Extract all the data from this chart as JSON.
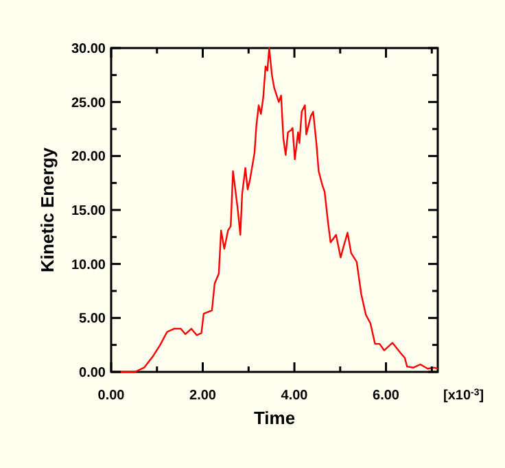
{
  "chart_data": {
    "type": "line",
    "xlabel": "Time",
    "ylabel": "Kinetic Energy",
    "annotations": [
      "[x10$^{-3}$]"
    ],
    "xlim": [
      0,
      7.13
    ],
    "ylim": [
      0,
      30
    ],
    "xticks": [
      {
        "value": 0,
        "label": "0.00"
      },
      {
        "value": 1,
        "label": null
      },
      {
        "value": 2,
        "label": "2.00"
      },
      {
        "value": 3,
        "label": null
      },
      {
        "value": 4,
        "label": "4.00"
      },
      {
        "value": 5,
        "label": null
      },
      {
        "value": 6,
        "label": "6.00"
      },
      {
        "value": 7,
        "label": null
      }
    ],
    "yticks": [
      {
        "value": 0,
        "label": "0.00"
      },
      {
        "value": 2.5,
        "label": null
      },
      {
        "value": 5,
        "label": "5.00"
      },
      {
        "value": 7.5,
        "label": null
      },
      {
        "value": 10,
        "label": "10.00"
      },
      {
        "value": 12.5,
        "label": null
      },
      {
        "value": 15,
        "label": "15.00"
      },
      {
        "value": 17.5,
        "label": null
      },
      {
        "value": 20,
        "label": "20.00"
      },
      {
        "value": 22.5,
        "label": null
      },
      {
        "value": 25,
        "label": "25.00"
      },
      {
        "value": 27.5,
        "label": null
      },
      {
        "value": 30,
        "label": "30.00"
      }
    ],
    "grid": false,
    "marker": "none",
    "line_style": "solid",
    "series": [
      {
        "color": "#ff0000",
        "x": [
          0,
          0.52,
          0.72,
          0.92,
          1.07,
          1.22,
          1.37,
          1.52,
          1.62,
          1.75,
          1.87,
          1.97,
          2.02,
          2.2,
          2.26,
          2.35,
          2.4,
          2.47,
          2.55,
          2.61,
          2.66,
          2.76,
          2.82,
          2.86,
          2.93,
          2.98,
          3.03,
          3.13,
          3.17,
          3.22,
          3.27,
          3.32,
          3.37,
          3.41,
          3.45,
          3.51,
          3.56,
          3.66,
          3.71,
          3.76,
          3.81,
          3.86,
          3.93,
          3.96,
          4.01,
          4.08,
          4.11,
          4.16,
          4.23,
          4.26,
          4.36,
          4.41,
          4.48,
          4.53,
          4.61,
          4.66,
          4.73,
          4.79,
          4.91,
          5.01,
          5.06,
          5.16,
          5.24,
          5.36,
          5.46,
          5.56,
          5.66,
          5.76,
          5.86,
          5.96,
          6.14,
          6.31,
          6.41,
          6.46,
          6.6,
          6.75,
          6.91,
          7.05,
          7.13
        ],
        "values": [
          0,
          0,
          0.4,
          1.5,
          2.5,
          3.7,
          4.0,
          4.0,
          3.5,
          4.0,
          3.4,
          3.6,
          5.4,
          5.7,
          8.2,
          9.1,
          13.1,
          11.4,
          13.1,
          13.5,
          18.6,
          15.2,
          12.7,
          16.5,
          18.9,
          16.9,
          17.8,
          20.3,
          22.8,
          24.7,
          23.9,
          25.4,
          28.3,
          27.9,
          30,
          27.5,
          26.3,
          25.0,
          25.6,
          21.6,
          20.1,
          22.2,
          22.4,
          22.6,
          19.7,
          22.2,
          21.2,
          24.1,
          24.7,
          22.0,
          23.7,
          24.1,
          21.2,
          18.6,
          17.3,
          16.7,
          14.0,
          12.0,
          12.7,
          10.6,
          11.4,
          12.9,
          11.0,
          10.2,
          7.2,
          5.3,
          4.5,
          2.6,
          2.6,
          2.0,
          2.7,
          1.8,
          1.3,
          0.5,
          0.4,
          0.7,
          0.3,
          0.4,
          0.3
        ]
      }
    ]
  }
}
